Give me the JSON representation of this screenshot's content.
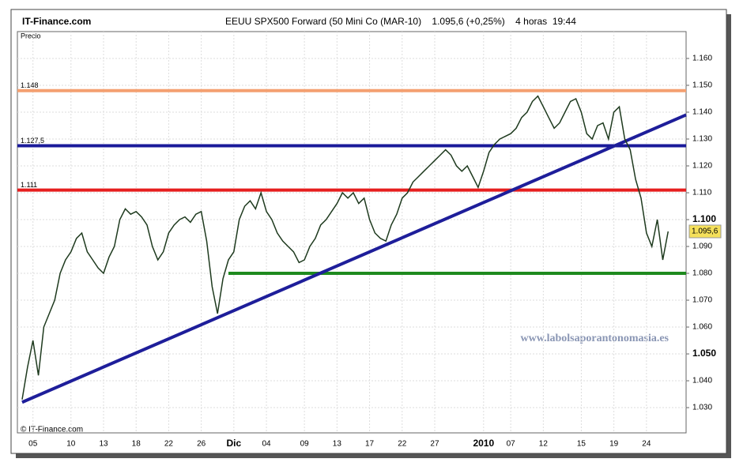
{
  "chart_data": {
    "type": "line",
    "brand": "IT-Finance.com",
    "title": "EEUU SPX500 Forward (50 Mini Co (MAR-10)    1.095,6 (+0,25%)    4 horas  19:44",
    "ylabel": "Precio",
    "copyright": "© IT-Finance.com",
    "watermark": "www.labolsaporantonomasia.es",
    "last_price": {
      "value": 1.0956,
      "label": "1.095,6"
    },
    "categories": [
      null,
      null,
      "05",
      null,
      null,
      null,
      null,
      null,
      null,
      "10",
      null,
      null,
      null,
      null,
      null,
      "13",
      null,
      null,
      null,
      null,
      null,
      "18",
      null,
      null,
      null,
      null,
      null,
      "22",
      null,
      null,
      null,
      null,
      null,
      "26",
      null,
      null,
      null,
      null,
      null,
      "Dic",
      null,
      null,
      null,
      null,
      null,
      "04",
      null,
      null,
      null,
      null,
      null,
      null,
      "09",
      null,
      null,
      null,
      null,
      null,
      "13",
      null,
      null,
      null,
      null,
      null,
      "17",
      null,
      null,
      null,
      null,
      null,
      "22",
      null,
      null,
      null,
      null,
      null,
      "27",
      null,
      null,
      null,
      null,
      null,
      null,
      null,
      null,
      "2010",
      null,
      null,
      null,
      null,
      "07",
      null,
      null,
      null,
      null,
      null,
      "12",
      null,
      null,
      null,
      null,
      null,
      null,
      "15",
      null,
      null,
      null,
      null,
      null,
      "19",
      null,
      null,
      null,
      null,
      null,
      "24",
      null,
      null,
      null,
      null
    ],
    "series": [
      {
        "name": "SPX500",
        "color": "#1e3a1e",
        "values": [
          1.033,
          1.045,
          1.055,
          1.042,
          1.06,
          1.065,
          1.07,
          1.08,
          1.085,
          1.088,
          1.093,
          1.095,
          1.088,
          1.085,
          1.082,
          1.08,
          1.086,
          1.09,
          1.1,
          1.104,
          1.102,
          1.103,
          1.101,
          1.098,
          1.09,
          1.085,
          1.088,
          1.095,
          1.098,
          1.1,
          1.101,
          1.099,
          1.102,
          1.103,
          1.092,
          1.075,
          1.065,
          1.078,
          1.085,
          1.088,
          1.1,
          1.105,
          1.107,
          1.104,
          1.11,
          1.103,
          1.1,
          1.095,
          1.092,
          1.09,
          1.088,
          1.084,
          1.085,
          1.09,
          1.093,
          1.098,
          1.1,
          1.103,
          1.106,
          1.11,
          1.108,
          1.11,
          1.106,
          1.108,
          1.1,
          1.095,
          1.093,
          1.092,
          1.098,
          1.102,
          1.108,
          1.11,
          1.114,
          1.116,
          1.118,
          1.12,
          1.122,
          1.124,
          1.126,
          1.124,
          1.12,
          1.118,
          1.12,
          1.116,
          1.112,
          1.118,
          1.125,
          1.128,
          1.13,
          1.131,
          1.132,
          1.134,
          1.138,
          1.14,
          1.144,
          1.146,
          1.142,
          1.138,
          1.134,
          1.136,
          1.14,
          1.144,
          1.145,
          1.14,
          1.132,
          1.13,
          1.135,
          1.136,
          1.13,
          1.14,
          1.142,
          1.13,
          1.126,
          1.115,
          1.108,
          1.095,
          1.09,
          1.1,
          1.085,
          1.0956
        ]
      }
    ],
    "levels": [
      {
        "label": "1.148",
        "value": 1.148,
        "color": "#f4a070"
      },
      {
        "label": "1.127,5",
        "value": 1.1275,
        "color": "#1a1a9a"
      },
      {
        "label": "1.111",
        "value": 1.111,
        "color": "#e61e1e"
      },
      {
        "value": 1.08,
        "color": "#1e8a1e",
        "start": 38
      }
    ],
    "trendline": {
      "color": "#1e1e9a",
      "x": [
        0,
        122.3
      ],
      "y": [
        1.032,
        1.139
      ]
    },
    "xlim": [
      -0.87,
      122.3
    ],
    "ylim": [
      1.0206,
      1.17
    ],
    "yticks": [
      {
        "value": 1.03,
        "label": "1.030"
      },
      {
        "value": 1.04,
        "label": "1.040"
      },
      {
        "value": 1.05,
        "label": "1.050"
      },
      {
        "value": 1.06,
        "label": "1.060"
      },
      {
        "value": 1.07,
        "label": "1.070"
      },
      {
        "value": 1.08,
        "label": "1.080"
      },
      {
        "value": 1.09,
        "label": "1.090"
      },
      {
        "value": 1.1,
        "label": "1.100"
      },
      {
        "value": 1.11,
        "label": "1.110"
      },
      {
        "value": 1.12,
        "label": "1.120"
      },
      {
        "value": 1.13,
        "label": "1.130"
      },
      {
        "value": 1.14,
        "label": "1.140"
      },
      {
        "value": 1.15,
        "label": "1.150"
      },
      {
        "value": 1.16,
        "label": "1.160"
      }
    ],
    "grid": true
  }
}
